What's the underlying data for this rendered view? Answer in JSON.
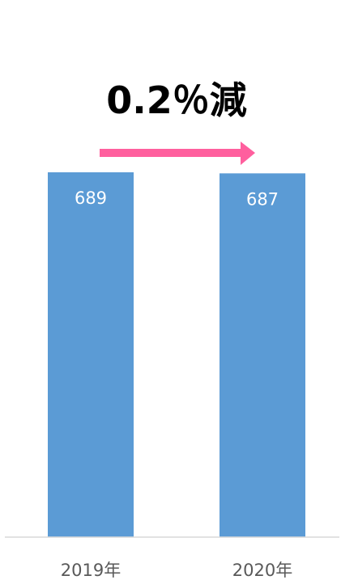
{
  "chart_data": {
    "type": "bar",
    "categories": [
      "2019年",
      "2020年"
    ],
    "values": [
      689,
      687
    ],
    "ylim": [
      0,
      689
    ],
    "grid": false,
    "legend": "none",
    "annotation": "0.2％減",
    "colors": {
      "bar": "#5b9bd5",
      "arrow": "#ff5f9e",
      "data_label": "#ffffff",
      "tick_label": "#595959",
      "axis": "#d9d9d9"
    }
  }
}
